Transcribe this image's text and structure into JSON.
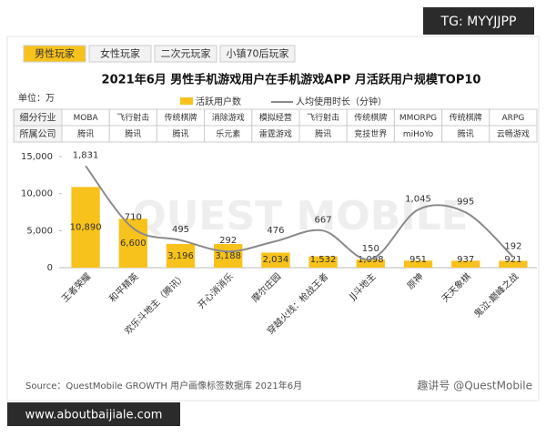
{
  "tabs": [
    "男性玩家",
    "女性玩家",
    "二次元玩家",
    "小镇70后玩家"
  ],
  "watermark_top": "TG: MYYJJPP",
  "watermark_bottom": "www.aboutbaijiale.com",
  "background_mark": "QUEST MOBILE",
  "source": "Source：QuestMobile GROWTH 用户画像标签数据库 2021年6月",
  "footer": "趣讲号 @QuestMobile",
  "chart_data": {
    "type": "bar",
    "title": "2021年6月 男性手机游戏用户在手机游戏APP 月活跃用户规模TOP10",
    "unit": "单位：万",
    "table": {
      "rows": [
        {
          "header": "细分行业",
          "cells": [
            "MOBA",
            "飞行射击",
            "传统棋牌",
            "消除游戏",
            "模拟经营",
            "飞行射击",
            "传统棋牌",
            "MMORPG",
            "传统棋牌",
            "ARPG"
          ]
        },
        {
          "header": "所属公司",
          "cells": [
            "腾讯",
            "腾讯",
            "腾讯",
            "乐元素",
            "雷霆游戏",
            "腾讯",
            "竞技世界",
            "miHoYo",
            "腾讯",
            "云畅游戏"
          ]
        }
      ]
    },
    "categories": [
      "王者荣耀",
      "和平精英",
      "欢乐斗地主（腾讯）",
      "开心消消乐",
      "摩尔庄园",
      "穿越火线：枪战王者",
      "JJ斗地主",
      "原神",
      "天天象棋",
      "鬼泣-巅峰之战"
    ],
    "series": [
      {
        "name": "活跃用户数",
        "color": "#f7c21b",
        "values": [
          10890,
          6600,
          3196,
          3188,
          2034,
          1532,
          1098,
          951,
          937,
          921
        ],
        "value_labels": [
          "10,890",
          "6,600",
          "3,196",
          "3,188",
          "2,034",
          "1,532",
          "1,098",
          "951",
          "937",
          "921"
        ]
      },
      {
        "name": "人均使用时长（分钟）",
        "type": "line",
        "axis": "y2",
        "color": "#8a8a8a",
        "values": [
          1831,
          710,
          495,
          292,
          476,
          667,
          150,
          1045,
          995,
          192
        ],
        "value_labels": [
          "1,831",
          "710",
          "495",
          "292",
          "476",
          "667",
          "150",
          "1,045",
          "995",
          "192"
        ]
      }
    ],
    "ylim": [
      0,
      15000
    ],
    "yticks": [
      0,
      {
        "value": 5000,
        "label": "5,000"
      },
      {
        "value": 10000,
        "label": "10,000"
      },
      {
        "value": 15000,
        "label": "15,000"
      }
    ],
    "y2lim": [
      0,
      2000
    ]
  }
}
